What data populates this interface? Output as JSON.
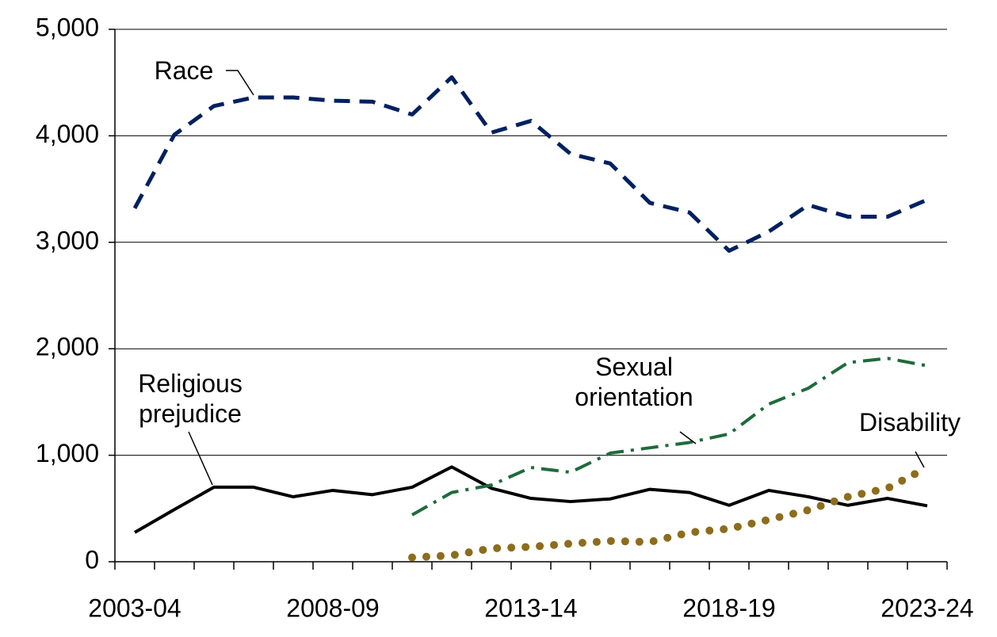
{
  "chart_data": {
    "type": "line",
    "categories": [
      "2003-04",
      null,
      null,
      null,
      null,
      "2008-09",
      null,
      null,
      null,
      null,
      "2013-14",
      null,
      null,
      null,
      null,
      "2018-19",
      null,
      null,
      null,
      null,
      "2023-24"
    ],
    "ylim": [
      0,
      5000
    ],
    "yticks": [
      0,
      {
        "value": 1000,
        "label": "1,000"
      },
      {
        "value": 2000,
        "label": "2,000"
      },
      {
        "value": 3000,
        "label": "3,000"
      },
      {
        "value": 4000,
        "label": "4,000"
      },
      {
        "value": 5000,
        "label": "5,000"
      }
    ],
    "grid": true,
    "series": [
      {
        "name": "Race",
        "color": "#002060",
        "line_style": "dashed",
        "values": [
          3320,
          4010,
          4280,
          4360,
          4360,
          4330,
          4320,
          4200,
          4550,
          4030,
          4140,
          3830,
          3740,
          3370,
          3280,
          2920,
          3100,
          3350,
          3240,
          3240,
          3400
        ]
      },
      {
        "name": "Religious prejudice",
        "color": "#000000",
        "line_style": "solid",
        "values": [
          275,
          490,
          700,
          700,
          610,
          670,
          630,
          700,
          890,
          690,
          595,
          565,
          590,
          680,
          650,
          530,
          670,
          610,
          530,
          595,
          525
        ]
      },
      {
        "name": "Sexual orientation",
        "color": "#1e6b3c",
        "line_style": "dashdot",
        "values": [
          null,
          null,
          null,
          null,
          null,
          null,
          null,
          440,
          650,
          720,
          885,
          840,
          1020,
          1070,
          1120,
          1200,
          1480,
          1630,
          1870,
          1910,
          1840
        ]
      },
      {
        "name": "Disability",
        "color": "#8b6d1c",
        "line_style": "dotted",
        "values": [
          null,
          null,
          null,
          null,
          null,
          null,
          null,
          40,
          60,
          125,
          140,
          170,
          195,
          185,
          275,
          310,
          395,
          485,
          610,
          690,
          885
        ]
      }
    ]
  }
}
